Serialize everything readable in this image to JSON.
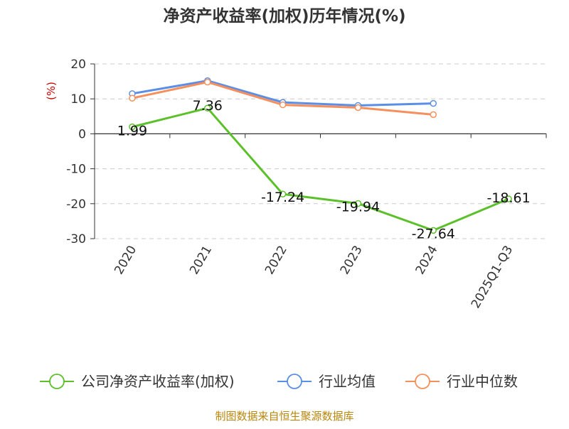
{
  "chart_data": {
    "type": "line",
    "title": "净资产收益率(加权)历年情况(%)",
    "ylabel": "(%)",
    "xlabel": "",
    "categories": [
      "2020",
      "2021",
      "2022",
      "2023",
      "2024",
      "2025Q1-Q3"
    ],
    "ylim": [
      -30,
      20
    ],
    "yticks": [
      20,
      10,
      0,
      -10,
      -20,
      -30
    ],
    "grid": true,
    "legend_position": "bottom",
    "series": [
      {
        "name": "公司净资产收益率(加权)",
        "color": "#5cc02a",
        "values": [
          1.99,
          7.36,
          -17.24,
          -19.94,
          -27.64,
          -18.61
        ],
        "labels": [
          "1.99",
          "7.36",
          "-17.24",
          "-19.94",
          "-27.64",
          "-18.61"
        ]
      },
      {
        "name": "行业均值",
        "color": "#5b8ee6",
        "values": [
          11.5,
          15.2,
          9.0,
          8.1,
          8.7,
          null
        ]
      },
      {
        "name": "行业中位数",
        "color": "#f5905c",
        "values": [
          10.2,
          14.8,
          8.3,
          7.5,
          5.5,
          null
        ]
      }
    ]
  },
  "footer": {
    "source": "制图数据来自恒生聚源数据库"
  }
}
